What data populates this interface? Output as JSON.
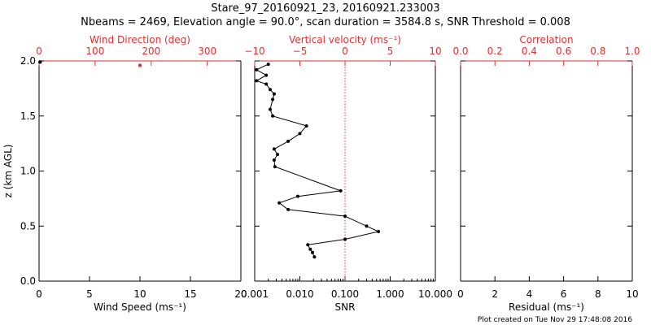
{
  "header": {
    "title": "Stare_97_20160921_23, 20160921.233003",
    "subtitle": "Nbeams = 2469, Elevation angle = 90.0°, scan duration = 3584.8 s, SNR Threshold = 0.008"
  },
  "footer": {
    "created": "Plot created on Tue Nov 29 17:48:08 2016"
  },
  "colors": {
    "axis": "#000000",
    "accent": "#e03030"
  },
  "chart_data": [
    {
      "type": "scatter",
      "panel": "wind",
      "ylabel": "z (km AGL)",
      "ylim": [
        0,
        2
      ],
      "yticks": [
        0.0,
        0.5,
        1.0,
        1.5,
        2.0
      ],
      "ytick_labels": [
        "0.0",
        "0.5",
        "1.0",
        "1.5",
        "2.0"
      ],
      "bottom_axis": {
        "label": "Wind Speed (ms⁻¹)",
        "range": [
          0,
          20
        ],
        "ticks": [
          0,
          5,
          10,
          15,
          20
        ],
        "tick_labels": [
          "0",
          "5",
          "10",
          "15",
          "20"
        ]
      },
      "top_axis": {
        "label": "Wind Direction (deg)",
        "range": [
          0,
          360
        ],
        "ticks": [
          0,
          100,
          200,
          300
        ],
        "tick_labels": [
          "0",
          "100",
          "200",
          "300"
        ]
      },
      "speed_points": [
        {
          "x": 0.1,
          "y": 1.99
        }
      ],
      "direction_points": [
        {
          "x": 180,
          "y": 1.96
        }
      ]
    },
    {
      "type": "line",
      "panel": "snr",
      "ylim": [
        0,
        2
      ],
      "bottom_axis": {
        "label": "SNR",
        "scale": "log",
        "range": [
          0.001,
          10
        ],
        "ticks": [
          0.001,
          0.01,
          0.1,
          1,
          10
        ],
        "tick_labels": [
          "0.001",
          "0.010",
          "0.100",
          "1.000",
          "10.000"
        ]
      },
      "top_axis": {
        "label": "Vertical velocity (ms⁻¹)",
        "range": [
          -10,
          10
        ],
        "ticks": [
          -10,
          -5,
          0,
          5,
          10
        ],
        "tick_labels": [
          "−10",
          "−5",
          "0",
          "5",
          "10"
        ]
      },
      "threshold_line": {
        "x": 0.1
      },
      "snr_profile": [
        {
          "x": 0.021,
          "y": 0.22
        },
        {
          "x": 0.019,
          "y": 0.26
        },
        {
          "x": 0.017,
          "y": 0.29
        },
        {
          "x": 0.015,
          "y": 0.33
        },
        {
          "x": 0.1,
          "y": 0.38
        },
        {
          "x": 0.55,
          "y": 0.45
        },
        {
          "x": 0.3,
          "y": 0.5
        },
        {
          "x": 0.1,
          "y": 0.59
        },
        {
          "x": 0.0055,
          "y": 0.65
        },
        {
          "x": 0.0035,
          "y": 0.71
        },
        {
          "x": 0.009,
          "y": 0.77
        },
        {
          "x": 0.08,
          "y": 0.82
        },
        {
          "x": 0.0028,
          "y": 1.04
        },
        {
          "x": 0.0027,
          "y": 1.1
        },
        {
          "x": 0.0032,
          "y": 1.15
        },
        {
          "x": 0.0027,
          "y": 1.2
        },
        {
          "x": 0.0055,
          "y": 1.27
        },
        {
          "x": 0.01,
          "y": 1.34
        },
        {
          "x": 0.014,
          "y": 1.41
        },
        {
          "x": 0.0025,
          "y": 1.5
        },
        {
          "x": 0.0022,
          "y": 1.56
        },
        {
          "x": 0.0025,
          "y": 1.65
        },
        {
          "x": 0.0027,
          "y": 1.7
        },
        {
          "x": 0.0022,
          "y": 1.74
        },
        {
          "x": 0.0018,
          "y": 1.79
        },
        {
          "x": 0.0011,
          "y": 1.82
        },
        {
          "x": 0.0018,
          "y": 1.87
        },
        {
          "x": 0.0011,
          "y": 1.92
        },
        {
          "x": 0.002,
          "y": 1.97
        }
      ]
    },
    {
      "type": "scatter",
      "panel": "residual",
      "ylim": [
        0,
        2
      ],
      "bottom_axis": {
        "label": "Residual (ms⁻¹)",
        "range": [
          0,
          10
        ],
        "ticks": [
          0,
          2,
          4,
          6,
          8,
          10
        ],
        "tick_labels": [
          "0",
          "2",
          "4",
          "6",
          "8",
          "10"
        ]
      },
      "top_axis": {
        "label": "Correlation",
        "range": [
          0,
          1
        ],
        "ticks": [
          0,
          0.2,
          0.4,
          0.6,
          0.8,
          1
        ],
        "tick_labels": [
          "0.0",
          "0.2",
          "0.4",
          "0.6",
          "0.8",
          "1.0"
        ]
      },
      "points": []
    }
  ]
}
